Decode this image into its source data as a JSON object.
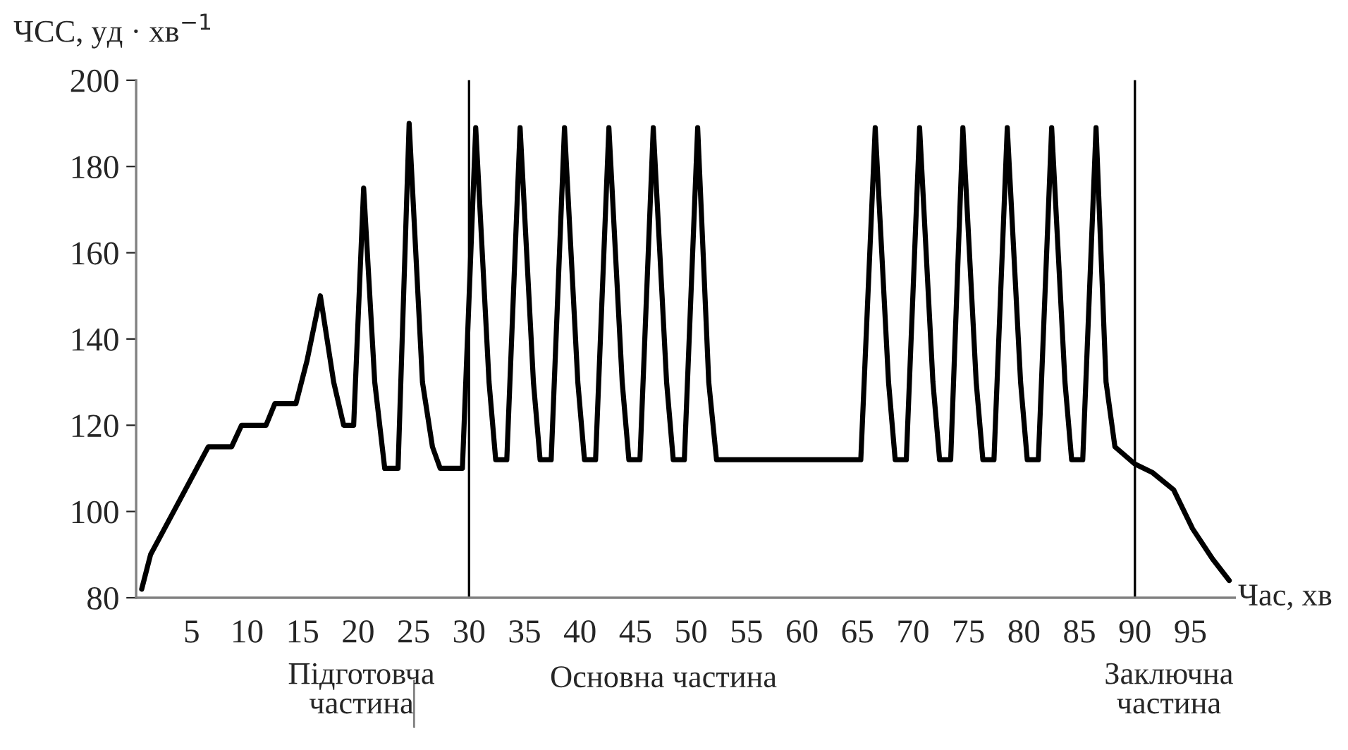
{
  "chart_data": {
    "type": "line",
    "xlabel": "Час, хв",
    "ylabel": "ЧСС, уд · хв$^{−1}$",
    "annotations": [
      "Підготовча\nчастина",
      "Основна частина",
      "Заключна\nчастина"
    ],
    "xlim": [
      0,
      99
    ],
    "xticks": [
      5,
      10,
      15,
      20,
      25,
      30,
      35,
      40,
      45,
      50,
      55,
      60,
      65,
      70,
      75,
      80,
      85,
      90,
      95
    ],
    "ylim": [
      80,
      200
    ],
    "yticks": [
      80,
      100,
      120,
      140,
      160,
      180,
      200
    ],
    "grid": false,
    "legend": false,
    "marker": "none",
    "line_style": "solid",
    "ref_lines": [
      {
        "axis": "x",
        "value": 30,
        "color": "#000000"
      },
      {
        "axis": "x",
        "value": 90,
        "color": "#000000"
      }
    ],
    "series": [
      {
        "color": "#000000",
        "x": [
          0.5,
          1.3,
          6.5,
          8.6,
          9.5,
          11.7,
          12.5,
          14.4,
          15.4,
          16.6,
          17.8,
          18.7,
          19.6,
          20.5,
          21.5,
          22.4,
          23.6,
          24.6,
          25.8,
          26.7,
          27.4,
          29.4,
          30.6,
          31.8,
          32.4,
          33.4,
          34.6,
          35.8,
          36.4,
          37.4,
          38.6,
          39.8,
          40.4,
          41.4,
          42.6,
          43.8,
          44.4,
          45.4,
          46.6,
          47.8,
          48.4,
          49.4,
          50.6,
          51.6,
          52.3,
          65.3,
          66.6,
          67.8,
          68.4,
          69.4,
          70.6,
          71.8,
          72.4,
          73.4,
          74.5,
          75.7,
          76.3,
          77.3,
          78.5,
          79.7,
          80.3,
          81.3,
          82.5,
          83.7,
          84.3,
          85.3,
          86.5,
          87.4,
          88.2,
          90,
          91.6,
          93.5,
          95.2,
          97,
          98.5
        ],
        "values": [
          82,
          90,
          115,
          115,
          120,
          120,
          125,
          125,
          135,
          150,
          130,
          120,
          120,
          175,
          130,
          110,
          110,
          190,
          130,
          115,
          110,
          110,
          189,
          130,
          112,
          112,
          189,
          130,
          112,
          112,
          189,
          130,
          112,
          112,
          189,
          130,
          112,
          112,
          189,
          130,
          112,
          112,
          189,
          130,
          112,
          112,
          189,
          130,
          112,
          112,
          189,
          130,
          112,
          112,
          189,
          130,
          112,
          112,
          189,
          130,
          112,
          112,
          189,
          130,
          112,
          112,
          189,
          130,
          115,
          111,
          109,
          105,
          96,
          89,
          84
        ]
      }
    ]
  }
}
